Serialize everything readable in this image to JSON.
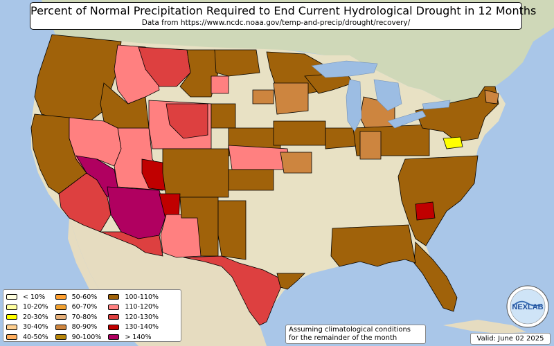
{
  "title": "Percent of Normal Precipitation Required to End Current Hydrological Drought in 12 Months",
  "subtitle": "Data from https://www.ncdc.noaa.gov/temp-and-precip/drought/recovery/",
  "note_line1": "Assuming climatological conditions",
  "note_line2": "for the remainder of the month",
  "valid": "Valid: June 02 2025",
  "logo_text": "NEXLAB",
  "colors": {
    "ocean": "#a9c6e8",
    "land": "#e8e1c4",
    "canada": "#cfd8b8",
    "mexico": "#e6dcc0",
    "lake": "#9cbde3",
    "border": "#000000"
  },
  "legend": {
    "col1": [
      {
        "label": "< 10%",
        "color": "#ffffe0"
      },
      {
        "label": "10-20%",
        "color": "#ffffa0"
      },
      {
        "label": "20-30%",
        "color": "#ffff00"
      },
      {
        "label": "30-40%",
        "color": "#ffd090"
      },
      {
        "label": "40-50%",
        "color": "#ffb060"
      }
    ],
    "col2": [
      {
        "label": "50-60%",
        "color": "#ffa030"
      },
      {
        "label": "60-70%",
        "color": "#f0a030"
      },
      {
        "label": "70-80%",
        "color": "#e6b07a"
      },
      {
        "label": "80-90%",
        "color": "#cd853f"
      },
      {
        "label": "90-100%",
        "color": "#b8860b"
      }
    ],
    "col3": [
      {
        "label": "100-110%",
        "color": "#a0620a"
      },
      {
        "label": "110-120%",
        "color": "#ff8080"
      },
      {
        "label": "120-130%",
        "color": "#dd4040"
      },
      {
        "label": "130-140%",
        "color": "#c00000"
      },
      {
        "label": "> 140%",
        "color": "#b00060"
      }
    ]
  }
}
